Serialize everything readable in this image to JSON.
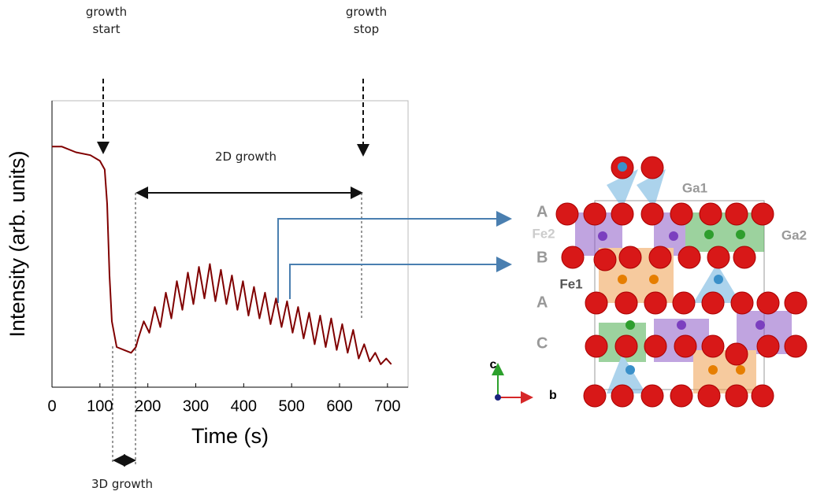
{
  "chart_data": {
    "type": "line",
    "x_label": "Time (s)",
    "y_label": "Intensity (arb. units)",
    "xlim": [
      0,
      743
    ],
    "xticks": [
      0,
      100,
      200,
      300,
      400,
      500,
      600,
      700
    ],
    "ylim": [
      0,
      1
    ],
    "color": "#800000",
    "x": [
      0,
      20,
      50,
      80,
      100,
      110,
      115,
      120,
      125,
      135,
      150,
      165,
      175,
      180,
      191.5,
      203,
      214.5,
      226,
      237.5,
      249,
      260.5,
      272,
      283.5,
      295,
      306.5,
      318,
      329.5,
      341,
      352.5,
      364,
      375.5,
      387,
      398.5,
      410,
      421.5,
      433,
      444.5,
      456,
      467.5,
      479,
      490.5,
      502,
      513.5,
      525,
      536.5,
      548,
      559.5,
      571,
      582.5,
      594,
      605.5,
      617,
      628.5,
      640,
      651.5,
      663,
      674.5,
      686,
      697.5,
      708
    ],
    "values": [
      0.84,
      0.84,
      0.82,
      0.81,
      0.79,
      0.76,
      0.64,
      0.39,
      0.23,
      0.14,
      0.13,
      0.12,
      0.14,
      0.17,
      0.23,
      0.19,
      0.28,
      0.21,
      0.33,
      0.24,
      0.37,
      0.27,
      0.4,
      0.29,
      0.42,
      0.31,
      0.43,
      0.3,
      0.41,
      0.29,
      0.39,
      0.27,
      0.37,
      0.25,
      0.35,
      0.24,
      0.33,
      0.22,
      0.31,
      0.21,
      0.3,
      0.19,
      0.28,
      0.17,
      0.26,
      0.15,
      0.25,
      0.14,
      0.24,
      0.13,
      0.22,
      0.12,
      0.2,
      0.1,
      0.15,
      0.09,
      0.12,
      0.08,
      0.1,
      0.08
    ],
    "annotations": [
      "growth start",
      "growth stop",
      "2D growth",
      "3D growth"
    ]
  },
  "structure": {
    "layers": [
      "A",
      "B",
      "A",
      "C"
    ],
    "sites": [
      "Fe2",
      "Fe1",
      "Ga1",
      "Ga2"
    ],
    "axes": [
      "c",
      "b"
    ]
  }
}
